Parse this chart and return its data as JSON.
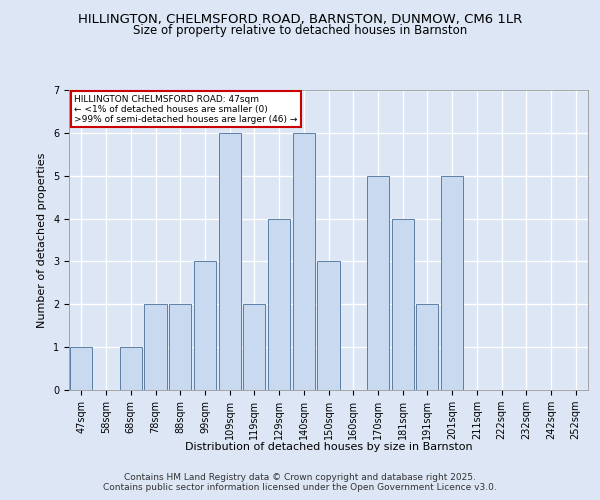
{
  "title1": "HILLINGTON, CHELMSFORD ROAD, BARNSTON, DUNMOW, CM6 1LR",
  "title2": "Size of property relative to detached houses in Barnston",
  "xlabel": "Distribution of detached houses by size in Barnston",
  "ylabel": "Number of detached properties",
  "categories": [
    "47sqm",
    "58sqm",
    "68sqm",
    "78sqm",
    "88sqm",
    "99sqm",
    "109sqm",
    "119sqm",
    "129sqm",
    "140sqm",
    "150sqm",
    "160sqm",
    "170sqm",
    "181sqm",
    "191sqm",
    "201sqm",
    "211sqm",
    "222sqm",
    "232sqm",
    "242sqm",
    "252sqm"
  ],
  "values": [
    1,
    0,
    1,
    2,
    2,
    3,
    6,
    2,
    4,
    6,
    3,
    0,
    5,
    4,
    2,
    5,
    0,
    0,
    0,
    0,
    0
  ],
  "bar_color": "#c9d9f0",
  "bar_edge_color": "#5b7fa6",
  "ylim": [
    0,
    7
  ],
  "yticks": [
    0,
    1,
    2,
    3,
    4,
    5,
    6,
    7
  ],
  "annotation_text": "HILLINGTON CHELMSFORD ROAD: 47sqm\n← <1% of detached houses are smaller (0)\n>99% of semi-detached houses are larger (46) →",
  "annotation_box_color": "#ffffff",
  "annotation_box_edge_color": "#cc0000",
  "footer": "Contains HM Land Registry data © Crown copyright and database right 2025.\nContains public sector information licensed under the Open Government Licence v3.0.",
  "bg_color": "#dce6f5",
  "plot_bg_color": "#dce6f5",
  "grid_color": "#ffffff",
  "title_fontsize": 9.5,
  "subtitle_fontsize": 8.5,
  "axis_label_fontsize": 8,
  "tick_fontsize": 7,
  "footer_fontsize": 6.5
}
